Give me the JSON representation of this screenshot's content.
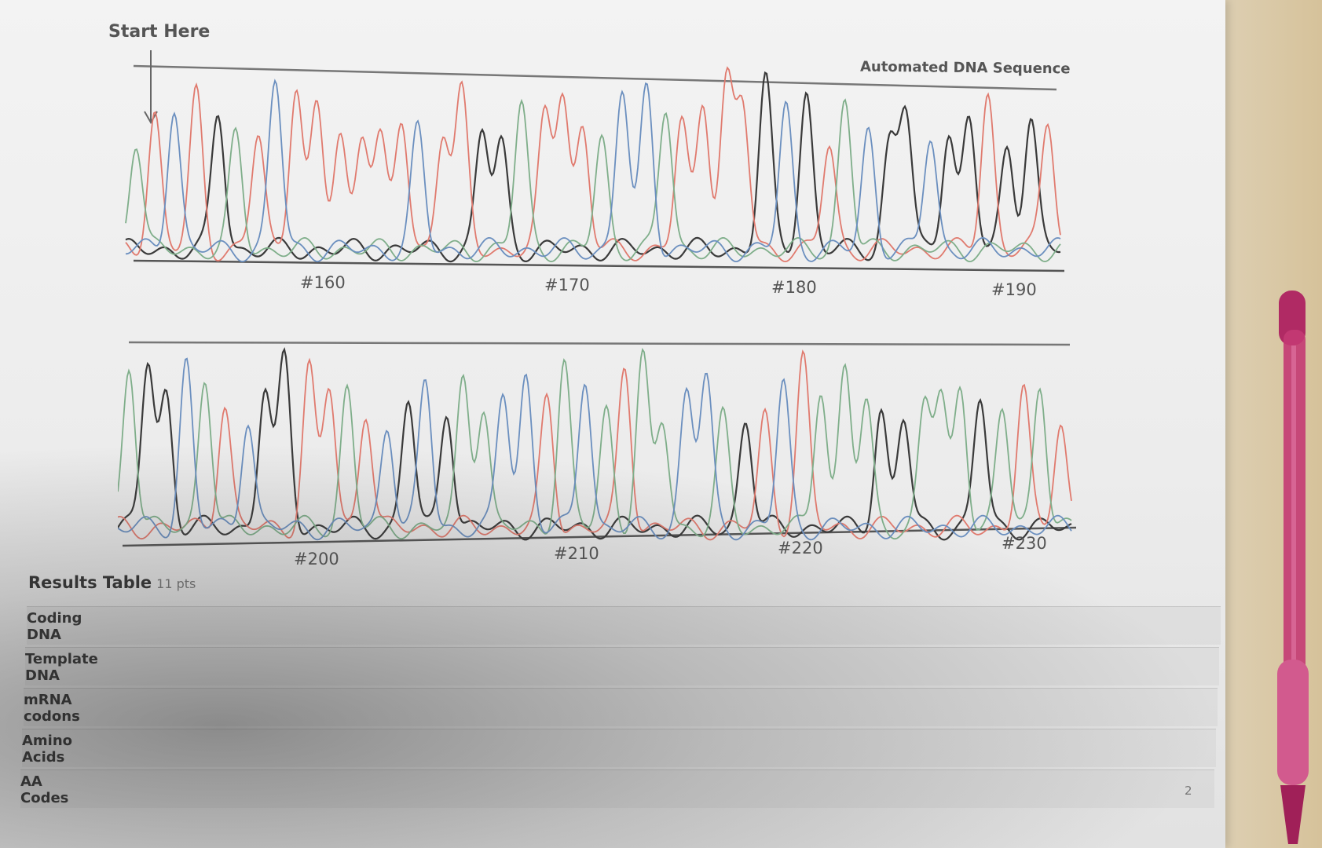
{
  "start_label": "Start Here",
  "sequence_title": "Automated DNA Sequence",
  "top_positions": [
    "#160",
    "#170",
    "#180",
    "#190"
  ],
  "bottom_positions": [
    "#200",
    "#210",
    "#220",
    "#230"
  ],
  "results": {
    "title": "Results Table",
    "points": "11 pts",
    "rows": [
      {
        "label": "Coding\nDNA"
      },
      {
        "label": "Template\nDNA"
      },
      {
        "label": "mRNA\ncodons"
      },
      {
        "label": "Amino\nAcids"
      },
      {
        "label": "AA\nCodes"
      }
    ]
  },
  "page_number": "2",
  "colors": {
    "trace_black": "#3a3a3a",
    "trace_red": "#e07a6e",
    "trace_green": "#7fae8a",
    "trace_blue": "#6b8fbf",
    "pen": "#c0306e"
  }
}
